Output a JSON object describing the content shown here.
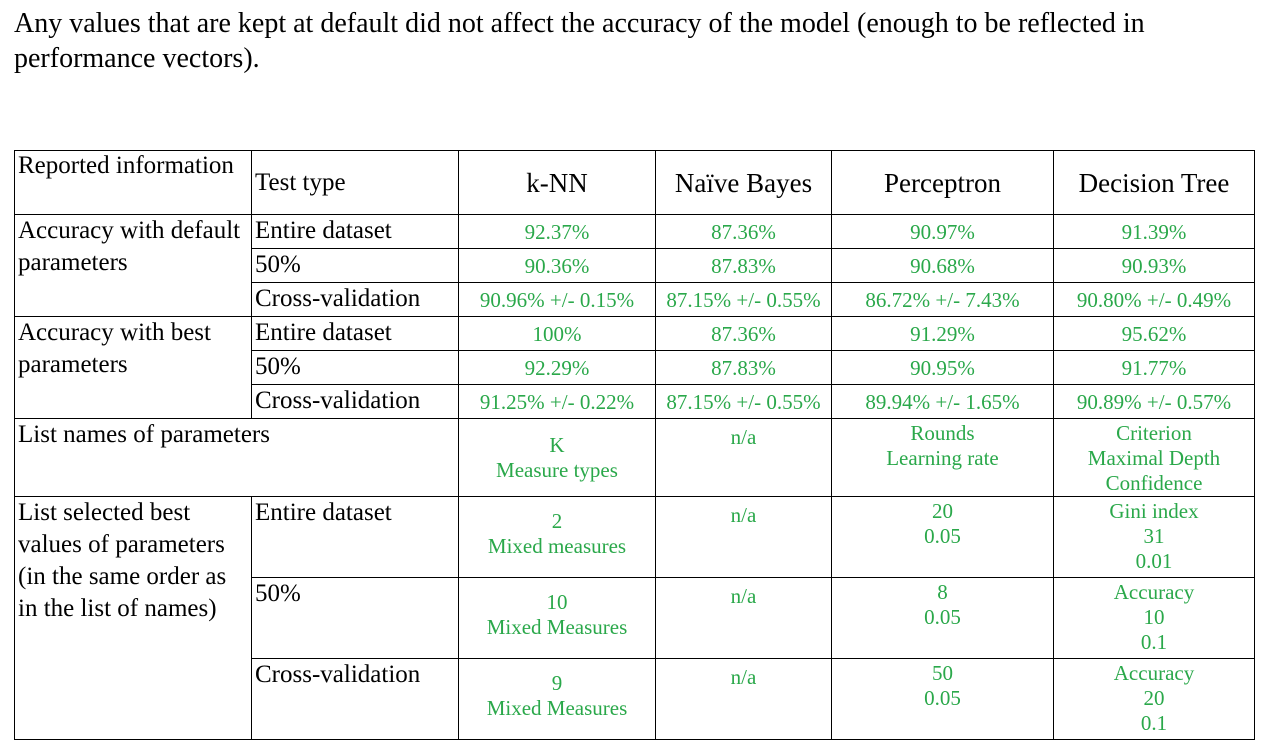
{
  "intro_text": "Any values that are kept at default did not affect the accuracy of the model (enough to be reflected in performance vectors).",
  "table": {
    "header": {
      "col1": "Reported information",
      "col2": "Test type",
      "algorithms": [
        "k-NN",
        "Naïve Bayes",
        "Perceptron",
        "Decision Tree"
      ]
    },
    "test_types": [
      "Entire dataset",
      "50%",
      "Cross-validation"
    ],
    "groups": [
      {
        "label": "Accuracy with default parameters",
        "rows": [
          [
            "92.37%",
            "87.36%",
            "90.97%",
            "91.39%"
          ],
          [
            "90.36%",
            "87.83%",
            "90.68%",
            "90.93%"
          ],
          [
            "90.96% +/- 0.15%",
            "87.15% +/- 0.55%",
            "86.72% +/- 7.43%",
            "90.80% +/- 0.49%"
          ]
        ]
      },
      {
        "label": "Accuracy with best parameters",
        "rows": [
          [
            "100%",
            "87.36%",
            "91.29%",
            "95.62%"
          ],
          [
            "92.29%",
            "87.83%",
            "90.95%",
            "91.77%"
          ],
          [
            "91.25% +/- 0.22%",
            "87.15% +/- 0.55%",
            "89.94% +/- 1.65%",
            "90.89% +/- 0.57%"
          ]
        ]
      }
    ],
    "param_names": {
      "label": "List names of parameters",
      "knn": [
        "K",
        "Measure types"
      ],
      "nb": "n/a",
      "perceptron": [
        "Rounds",
        "Learning rate"
      ],
      "dt": [
        "Criterion",
        "Maximal Depth",
        "Confidence"
      ]
    },
    "best_values": {
      "label": "List selected best values of parameters (in the same order as in the list of names)",
      "rows": [
        {
          "knn": [
            "2",
            "Mixed measures"
          ],
          "nb": "n/a",
          "perceptron": [
            "20",
            "0.05"
          ],
          "dt": [
            "Gini index",
            "31",
            "0.01"
          ]
        },
        {
          "knn": [
            "10",
            "Mixed Measures"
          ],
          "nb": "n/a",
          "perceptron": [
            "8",
            "0.05"
          ],
          "dt": [
            "Accuracy",
            "10",
            "0.1"
          ]
        },
        {
          "knn": [
            "9",
            "Mixed Measures"
          ],
          "nb": "n/a",
          "perceptron": [
            "50",
            "0.05"
          ],
          "dt": [
            "Accuracy",
            "20",
            "0.1"
          ]
        }
      ]
    }
  }
}
